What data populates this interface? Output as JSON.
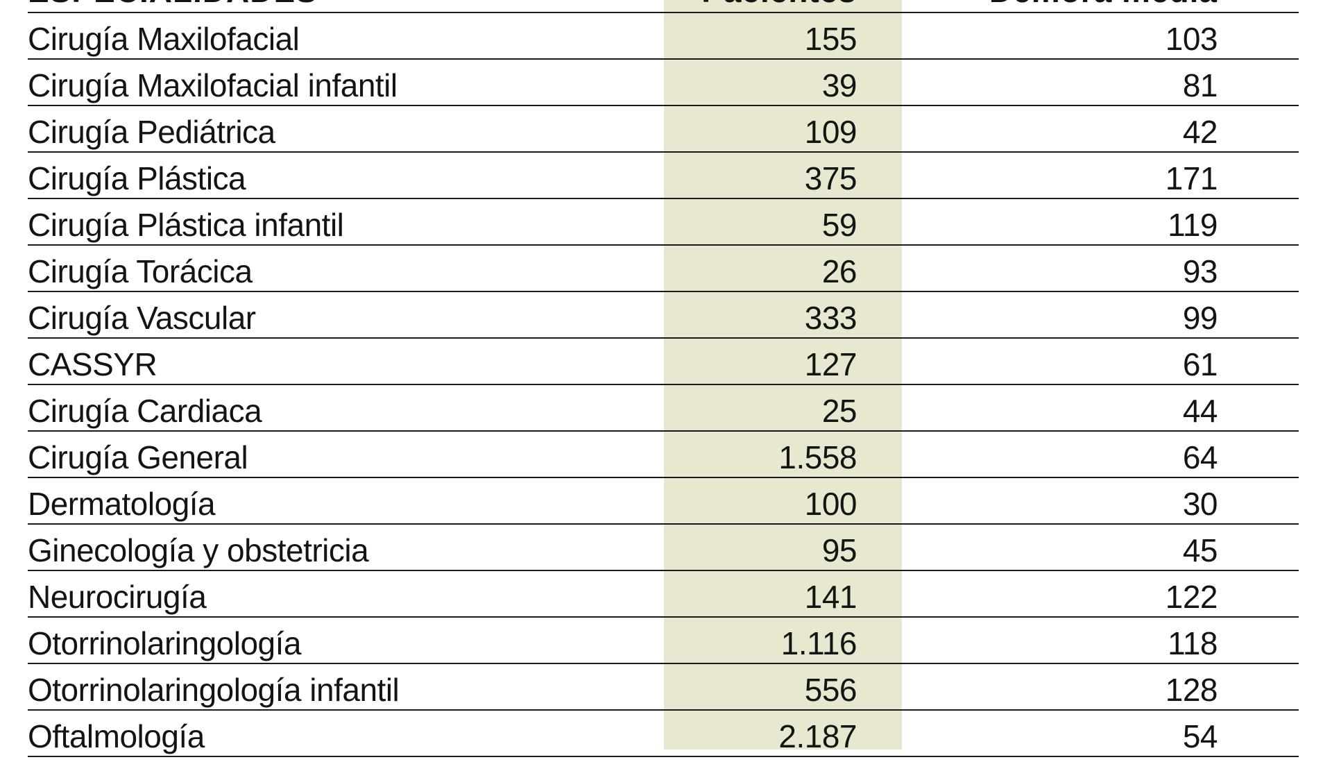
{
  "chart_data": {
    "type": "table",
    "columns": [
      "ESPECIALIDADES",
      "Pacientes",
      "Demora media"
    ],
    "rows": [
      {
        "especialidad": "Cirugía Maxilofacial",
        "pacientes": "155",
        "demora": "103"
      },
      {
        "especialidad": "Cirugía Maxilofacial infantil",
        "pacientes": "39",
        "demora": "81"
      },
      {
        "especialidad": "Cirugía Pediátrica",
        "pacientes": "109",
        "demora": "42"
      },
      {
        "especialidad": "Cirugía Plástica",
        "pacientes": "375",
        "demora": "171"
      },
      {
        "especialidad": "Cirugía Plástica infantil",
        "pacientes": "59",
        "demora": "119"
      },
      {
        "especialidad": "Cirugía Torácica",
        "pacientes": "26",
        "demora": "93"
      },
      {
        "especialidad": "Cirugía Vascular",
        "pacientes": "333",
        "demora": "99"
      },
      {
        "especialidad": "CASSYR",
        "pacientes": "127",
        "demora": "61"
      },
      {
        "especialidad": "Cirugía Cardiaca",
        "pacientes": "25",
        "demora": "44"
      },
      {
        "especialidad": "Cirugía General",
        "pacientes": "1.558",
        "demora": "64"
      },
      {
        "especialidad": "Dermatología",
        "pacientes": "100",
        "demora": "30"
      },
      {
        "especialidad": "Ginecología y obstetricia",
        "pacientes": "95",
        "demora": "45"
      },
      {
        "especialidad": "Neurocirugía",
        "pacientes": "141",
        "demora": "122"
      },
      {
        "especialidad": "Otorrinolaringología",
        "pacientes": "1.116",
        "demora": "118"
      },
      {
        "especialidad": "Otorrinolaringología infantil",
        "pacientes": "556",
        "demora": "128"
      },
      {
        "especialidad": "Oftalmología",
        "pacientes": "2.187",
        "demora": "54"
      }
    ]
  },
  "colors": {
    "highlight_column": "#e8e8d0",
    "rule": "#1a1a1a",
    "text": "#141414"
  }
}
